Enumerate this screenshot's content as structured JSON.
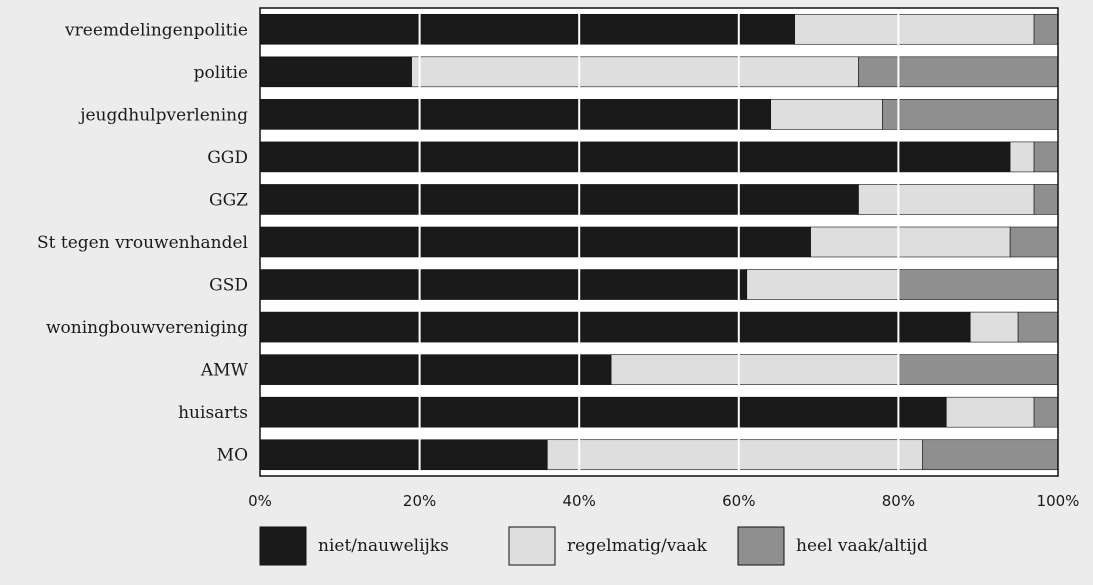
{
  "chart_data": {
    "type": "bar",
    "orientation": "horizontal",
    "stacked": true,
    "percent": true,
    "categories": [
      "vreemdelingenpolitie",
      "politie",
      "jeugdhulpverlening",
      "GGD",
      "GGZ",
      "St tegen vrouwenhandel",
      "GSD",
      "woningbouwvereniging",
      "AMW",
      "huisarts",
      "MO"
    ],
    "series": [
      {
        "name": "niet/nauwelijks",
        "color": "#1a1a1a",
        "values": [
          67,
          19,
          64,
          94,
          75,
          69,
          61,
          89,
          44,
          86,
          36
        ]
      },
      {
        "name": "regelmatig/vaak",
        "color": "#dedede",
        "values": [
          30,
          56,
          14,
          3,
          22,
          25,
          19,
          6,
          36,
          11,
          47
        ]
      },
      {
        "name": "heel vaak/altijd",
        "color": "#8f8f8f",
        "values": [
          3,
          25,
          22,
          3,
          3,
          6,
          20,
          5,
          20,
          3,
          17
        ]
      }
    ],
    "x_ticks": [
      "0%",
      "20%",
      "40%",
      "60%",
      "80%",
      "100%"
    ],
    "xlim": [
      0,
      100
    ],
    "grid": true,
    "legend_position": "bottom"
  }
}
